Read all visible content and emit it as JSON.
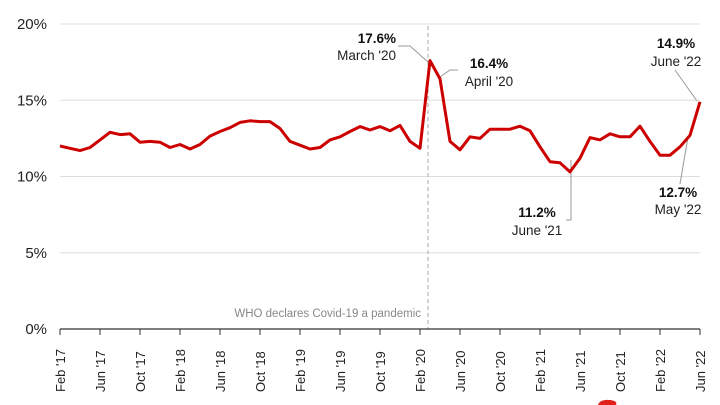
{
  "chart_data": {
    "type": "line",
    "title": "",
    "xlabel": "",
    "ylabel": "",
    "ylim": [
      0,
      20
    ],
    "yticks": [
      "0%",
      "5%",
      "10%",
      "15%",
      "20%"
    ],
    "xticks": [
      "Feb '17",
      "Jun '17",
      "Oct '17",
      "Feb '18",
      "Jun '18",
      "Oct '18",
      "Feb '19",
      "Jun '19",
      "Oct '19",
      "Feb '20",
      "Jun '20",
      "Oct '20",
      "Feb '21",
      "Jun '21",
      "Oct '21",
      "Feb '22",
      "Jun '22"
    ],
    "x_start": "Feb 2017",
    "x_end": "Jun 2022",
    "grid": true,
    "line_color": "#cc0000",
    "values": [
      12.0,
      11.85,
      11.7,
      11.9,
      12.4,
      12.9,
      12.75,
      12.8,
      12.25,
      12.3,
      12.25,
      11.9,
      12.1,
      11.8,
      12.1,
      12.65,
      12.95,
      13.2,
      13.55,
      13.65,
      13.6,
      13.6,
      13.15,
      12.3,
      12.05,
      11.8,
      11.9,
      12.4,
      12.6,
      12.95,
      13.27,
      13.05,
      13.27,
      13.0,
      13.35,
      12.3,
      11.85,
      17.6,
      16.4,
      12.3,
      11.75,
      12.6,
      12.5,
      13.1,
      13.1,
      13.1,
      13.3,
      13.0,
      11.95,
      10.97,
      10.9,
      10.3,
      11.2,
      12.55,
      12.4,
      12.8,
      12.6,
      12.6,
      13.3,
      12.3,
      11.4,
      11.4,
      11.95,
      12.7,
      14.9
    ],
    "event_line": {
      "month_index": 37,
      "label": "WHO declares Covid-19 a pandemic"
    },
    "annotations": [
      {
        "value": "17.6%",
        "label": "March '20"
      },
      {
        "value": "16.4%",
        "label": "April '20"
      },
      {
        "value": "11.2%",
        "label": "June '21"
      },
      {
        "value": "12.7%",
        "label": "May '22"
      },
      {
        "value": "14.9%",
        "label": "June '22"
      }
    ]
  }
}
